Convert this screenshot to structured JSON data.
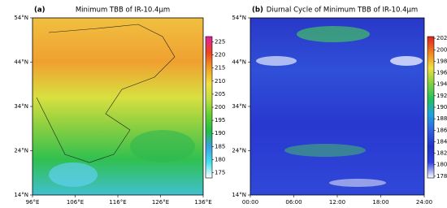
{
  "chart_data": [
    {
      "type": "heatmap",
      "panel_label": "(a)",
      "title": "Minimum TBB of IR-10.4μm",
      "xlim": [
        96,
        136
      ],
      "xticks": [
        {
          "value": 96,
          "label": "96°E"
        },
        {
          "value": 106,
          "label": "106°E"
        },
        {
          "value": 116,
          "label": "116°E"
        },
        {
          "value": 126,
          "label": "126°E"
        },
        {
          "value": 136,
          "label": "136°E"
        }
      ],
      "ylim": [
        14,
        54
      ],
      "yticks": [
        {
          "value": 14,
          "label": "14°N"
        },
        {
          "value": 24,
          "label": "24°N"
        },
        {
          "value": 34,
          "label": "34°N"
        },
        {
          "value": 44,
          "label": "44°N"
        },
        {
          "value": 54,
          "label": "54°N"
        }
      ],
      "clim": [
        173,
        227
      ],
      "cticks": [
        175,
        180,
        185,
        190,
        195,
        200,
        205,
        210,
        215,
        220,
        225
      ],
      "colormap": [
        "#ffffff",
        "#40e0f0",
        "#3aa0e0",
        "#20c040",
        "#60d030",
        "#c0e040",
        "#f0e040",
        "#f0a020",
        "#f04020",
        "#e020a0"
      ]
    },
    {
      "type": "heatmap",
      "panel_label": "(b)",
      "title": "Diurnal Cycle of Minimum TBB of IR-10.4μm",
      "xlim": [
        0,
        24
      ],
      "xticks": [
        {
          "value": 0,
          "label": "00:00"
        },
        {
          "value": 6,
          "label": "06:00"
        },
        {
          "value": 12,
          "label": "12:00"
        },
        {
          "value": 18,
          "label": "18:00"
        },
        {
          "value": 24,
          "label": "24:00"
        }
      ],
      "ylim": [
        14,
        54
      ],
      "yticks": [
        {
          "value": 14,
          "label": "14°N"
        },
        {
          "value": 24,
          "label": "24°N"
        },
        {
          "value": 34,
          "label": "34°N"
        },
        {
          "value": 44,
          "label": "44°N"
        },
        {
          "value": 54,
          "label": "54°N"
        }
      ],
      "clim": [
        177.7,
        202.3
      ],
      "cticks": [
        178,
        180,
        182,
        184,
        186,
        188,
        190,
        192,
        194,
        196,
        198,
        200,
        202
      ],
      "colormap": [
        "#ffffff",
        "#3040e0",
        "#2030c8",
        "#3060e0",
        "#20a0e0",
        "#20c060",
        "#80d040",
        "#f0e040",
        "#f08020",
        "#e02020"
      ]
    }
  ]
}
